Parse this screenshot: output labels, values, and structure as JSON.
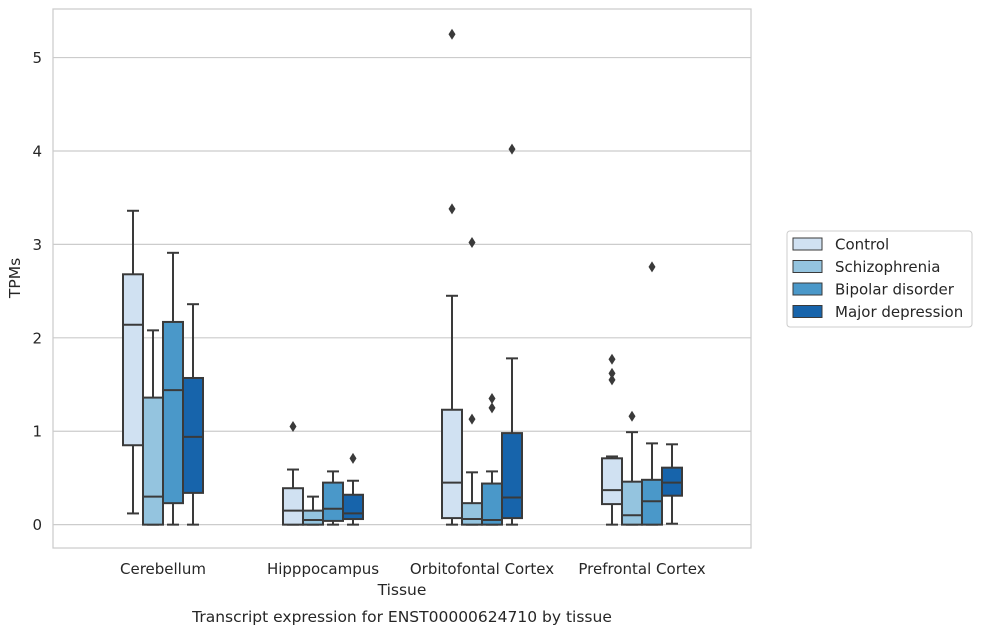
{
  "chart_data": {
    "type": "box",
    "title": "",
    "caption": "Transcript expression for ENST00000624710 by tissue",
    "xlabel": "Tissue",
    "ylabel": "TPMs",
    "ylim": [
      -0.25,
      5.52
    ],
    "yticks": [
      0,
      1,
      2,
      3,
      4,
      5
    ],
    "grid": "horizontal",
    "legend_position": "right",
    "categories": [
      "Cerebellum",
      "Hipppocampus",
      "Orbitofontal Cortex",
      "Prefrontal Cortex"
    ],
    "series": [
      {
        "name": "Control",
        "color": "#d0e1f2",
        "boxes": [
          {
            "min": 0.12,
            "q1": 0.85,
            "median": 2.14,
            "q3": 2.68,
            "max": 3.36,
            "outliers": []
          },
          {
            "min": 0.0,
            "q1": 0.0,
            "median": 0.15,
            "q3": 0.39,
            "max": 0.59,
            "outliers": [
              1.05
            ]
          },
          {
            "min": 0.0,
            "q1": 0.07,
            "median": 0.45,
            "q3": 1.23,
            "max": 2.45,
            "outliers": [
              3.38,
              5.25
            ]
          },
          {
            "min": 0.0,
            "q1": 0.22,
            "median": 0.37,
            "q3": 0.71,
            "max": 0.73,
            "outliers": [
              1.55,
              1.62,
              1.77
            ]
          }
        ]
      },
      {
        "name": "Schizophrenia",
        "color": "#94c4df",
        "boxes": [
          {
            "min": 0.0,
            "q1": 0.0,
            "median": 0.3,
            "q3": 1.36,
            "max": 2.08,
            "outliers": []
          },
          {
            "min": 0.0,
            "q1": 0.0,
            "median": 0.05,
            "q3": 0.15,
            "max": 0.3,
            "outliers": []
          },
          {
            "min": 0.0,
            "q1": 0.0,
            "median": 0.06,
            "q3": 0.23,
            "max": 0.56,
            "outliers": [
              1.13,
              3.02
            ]
          },
          {
            "min": 0.0,
            "q1": 0.0,
            "median": 0.1,
            "q3": 0.46,
            "max": 0.99,
            "outliers": [
              1.16
            ]
          }
        ]
      },
      {
        "name": "Bipolar disorder",
        "color": "#4a98c9",
        "boxes": [
          {
            "min": 0.0,
            "q1": 0.23,
            "median": 1.44,
            "q3": 2.17,
            "max": 2.91,
            "outliers": []
          },
          {
            "min": 0.0,
            "q1": 0.04,
            "median": 0.17,
            "q3": 0.45,
            "max": 0.57,
            "outliers": []
          },
          {
            "min": 0.0,
            "q1": 0.0,
            "median": 0.05,
            "q3": 0.44,
            "max": 0.57,
            "outliers": [
              1.25,
              1.35
            ]
          },
          {
            "min": 0.0,
            "q1": 0.0,
            "median": 0.25,
            "q3": 0.48,
            "max": 0.87,
            "outliers": [
              2.76
            ]
          }
        ]
      },
      {
        "name": "Major depression",
        "color": "#1764ab",
        "boxes": [
          {
            "min": 0.0,
            "q1": 0.34,
            "median": 0.94,
            "q3": 1.57,
            "max": 2.36,
            "outliers": []
          },
          {
            "min": 0.0,
            "q1": 0.06,
            "median": 0.12,
            "q3": 0.32,
            "max": 0.47,
            "outliers": [
              0.71
            ]
          },
          {
            "min": 0.0,
            "q1": 0.07,
            "median": 0.29,
            "q3": 0.98,
            "max": 1.78,
            "outliers": [
              4.02
            ]
          },
          {
            "min": 0.01,
            "q1": 0.31,
            "median": 0.45,
            "q3": 0.61,
            "max": 0.86,
            "outliers": []
          }
        ]
      }
    ]
  }
}
